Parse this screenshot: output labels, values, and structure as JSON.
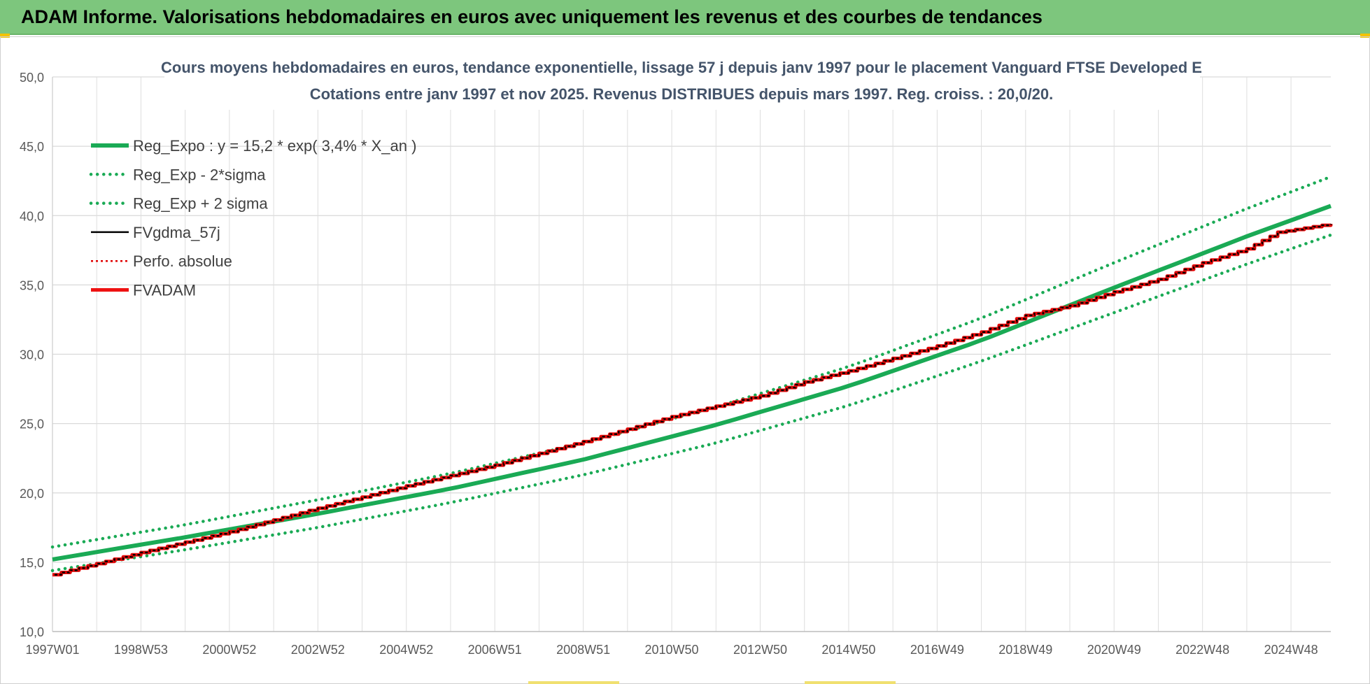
{
  "header": {
    "title": "ADAM Informe. Valorisations hebdomadaires en euros avec uniquement les revenus et des courbes de tendances"
  },
  "colors": {
    "header_bg": "#7dc67d",
    "reg_green": "#1aaa55",
    "fv_black": "#000000",
    "perfo_red": "#e00000",
    "adam_red": "#ee1111"
  },
  "chart_data": {
    "type": "line",
    "title_line1": "Cours moyens hebdomadaires en euros, tendance exponentielle, lissage 57 j depuis janv 1997 pour le placement Vanguard FTSE Developed E",
    "title_line2": "Cotations entre janv 1997 et nov 2025. Revenus DISTRIBUES depuis mars 1997. Reg. croiss. : 20,0/20.",
    "xlabel": "",
    "ylabel": "",
    "x_range": [
      1997.0,
      2025.9
    ],
    "ylim": [
      10,
      50
    ],
    "y_ticks": [
      "10,0",
      "15,0",
      "20,0",
      "25,0",
      "30,0",
      "35,0",
      "40,0",
      "45,0",
      "50,0"
    ],
    "x_tick_labels": [
      "1997W01",
      "1998W53",
      "2000W52",
      "2002W52",
      "2004W52",
      "2006W51",
      "2008W51",
      "2010W50",
      "2012W50",
      "2014W50",
      "2016W49",
      "2018W49",
      "2020W49",
      "2022W48",
      "2024W48"
    ],
    "x_tick_years": [
      1997.0,
      1999.0,
      2001.0,
      2003.0,
      2005.0,
      2007.0,
      2009.0,
      2011.0,
      2013.0,
      2015.0,
      2017.0,
      2019.0,
      2021.0,
      2023.0,
      2025.0
    ],
    "grid": true,
    "legend_position": "top-left",
    "series": [
      {
        "name": "Reg_Expo : y = 15,2 * exp( 3,4% *  X_an )",
        "style": "solid-thick",
        "color": "#1aaa55",
        "x": [
          1997.0,
          2000.0,
          2003.0,
          2006.0,
          2009.0,
          2012.0,
          2015.0,
          2018.0,
          2021.0,
          2024.0,
          2025.9
        ],
        "y": [
          15.2,
          16.8,
          18.5,
          20.3,
          22.4,
          24.9,
          27.7,
          31.0,
          34.8,
          38.5,
          40.7
        ]
      },
      {
        "name": "Reg_Exp - 2*sigma",
        "style": "dotted",
        "color": "#1aaa55",
        "x": [
          1997.0,
          2000.0,
          2003.0,
          2006.0,
          2009.0,
          2012.0,
          2015.0,
          2018.0,
          2021.0,
          2024.0,
          2025.9
        ],
        "y": [
          14.4,
          15.9,
          17.5,
          19.3,
          21.3,
          23.6,
          26.3,
          29.5,
          33.0,
          36.5,
          38.6
        ]
      },
      {
        "name": "Reg_Exp + 2 sigma",
        "style": "dotted",
        "color": "#1aaa55",
        "x": [
          1997.0,
          2000.0,
          2003.0,
          2006.0,
          2009.0,
          2012.0,
          2015.0,
          2018.0,
          2021.0,
          2024.0,
          2025.9
        ],
        "y": [
          16.1,
          17.7,
          19.5,
          21.4,
          23.6,
          26.2,
          29.1,
          32.6,
          36.6,
          40.5,
          42.8
        ]
      },
      {
        "name": "FVgdma_57j",
        "style": "solid",
        "color": "#000000",
        "x": [
          1997.0,
          1999.0,
          2001.0,
          2003.0,
          2005.0,
          2007.0,
          2009.0,
          2011.0,
          2013.0,
          2014.0,
          2015.0,
          2016.0,
          2017.0,
          2018.0,
          2019.0,
          2020.0,
          2021.0,
          2022.0,
          2023.0,
          2024.0,
          2024.7,
          2025.9
        ],
        "y": [
          14.1,
          15.7,
          17.2,
          18.9,
          20.5,
          22.0,
          23.7,
          25.5,
          27.0,
          28.0,
          28.8,
          29.7,
          30.6,
          31.6,
          32.8,
          33.5,
          34.5,
          35.4,
          36.6,
          37.6,
          38.8,
          39.4
        ]
      },
      {
        "name": "Perfo. absolue",
        "style": "dotted-thin",
        "color": "#e00000",
        "x": [
          1997.0,
          1999.0,
          2001.0,
          2003.0,
          2005.0,
          2007.0,
          2009.0,
          2011.0,
          2013.0,
          2014.0,
          2015.0,
          2016.0,
          2017.0,
          2018.0,
          2019.0,
          2020.0,
          2021.0,
          2022.0,
          2023.0,
          2024.0,
          2024.7,
          2025.9
        ],
        "y": [
          14.1,
          15.7,
          17.2,
          18.9,
          20.5,
          22.0,
          23.7,
          25.5,
          27.0,
          28.0,
          28.8,
          29.7,
          30.6,
          31.6,
          32.8,
          33.5,
          34.5,
          35.4,
          36.6,
          37.6,
          38.8,
          39.4
        ]
      },
      {
        "name": "FVADAM",
        "style": "solid-thick",
        "color": "#ee1111",
        "x": [
          1997.0,
          1999.0,
          2001.0,
          2003.0,
          2005.0,
          2007.0,
          2009.0,
          2011.0,
          2013.0,
          2014.0,
          2015.0,
          2016.0,
          2017.0,
          2018.0,
          2019.0,
          2020.0,
          2021.0,
          2022.0,
          2023.0,
          2024.0,
          2024.7,
          2025.9
        ],
        "y": [
          14.1,
          15.7,
          17.2,
          18.9,
          20.5,
          22.0,
          23.7,
          25.5,
          27.0,
          28.0,
          28.8,
          29.7,
          30.6,
          31.6,
          32.8,
          33.5,
          34.5,
          35.4,
          36.6,
          37.6,
          38.8,
          39.4
        ]
      }
    ]
  }
}
